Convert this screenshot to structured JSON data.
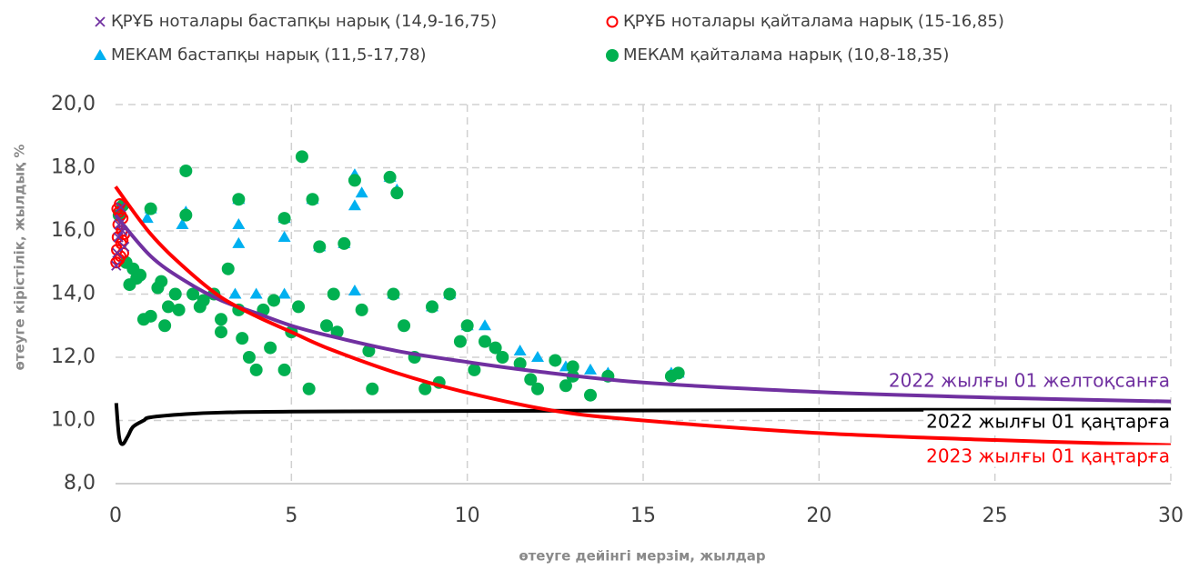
{
  "chart_data": {
    "type": "scatter",
    "xlabel": "өтеуге дейінгі мерзім, жылдар",
    "ylabel": "өтеуге кірістілік, жылдық %",
    "xlim": [
      0,
      30
    ],
    "xticks": [
      0,
      5,
      10,
      15,
      20,
      25,
      30
    ],
    "ylim": [
      8,
      20
    ],
    "yticks": [
      {
        "value": 8,
        "label": "8,0"
      },
      {
        "value": 10,
        "label": "10,0"
      },
      {
        "value": 12,
        "label": "12,0"
      },
      {
        "value": 14,
        "label": "14,0"
      },
      {
        "value": 16,
        "label": "16,0"
      },
      {
        "value": 18,
        "label": "18,0"
      },
      {
        "value": 20,
        "label": "20,0"
      }
    ],
    "grid": true,
    "series": [
      {
        "name": "ҚРҰБ ноталары бастапқы нарық (14,9-16,75)",
        "color": "#7030a0",
        "marker": "x",
        "x": [
          0.02,
          0.05,
          0.08,
          0.1,
          0.15,
          0.2,
          0.25
        ],
        "values": [
          14.9,
          15.3,
          15.8,
          16.2,
          16.75,
          16.0,
          15.5
        ]
      },
      {
        "name": "ҚРҰБ ноталары қайталама нарық (15-16,85)",
        "color": "#ff0000",
        "marker": "circle-open",
        "x": [
          0.02,
          0.04,
          0.06,
          0.08,
          0.1,
          0.12,
          0.14,
          0.16,
          0.18,
          0.2,
          0.22,
          0.25,
          0.05,
          0.1,
          0.15,
          0.2
        ],
        "values": [
          15.0,
          15.4,
          15.8,
          16.2,
          16.6,
          16.85,
          15.2,
          15.6,
          16.0,
          16.4,
          15.3,
          15.9,
          16.7,
          15.1,
          16.5,
          15.7
        ]
      },
      {
        "name": "МЕКАМ бастапқы нарық (11,5-17,78)",
        "color": "#00b0f0",
        "marker": "triangle",
        "x": [
          0.9,
          1.0,
          1.9,
          2.0,
          3.5,
          3.5,
          3.5,
          4.8,
          4.8,
          5.6,
          5.8,
          6.5,
          6.8,
          6.8,
          7.0,
          7.8,
          8.0,
          3.4,
          4.0,
          4.8,
          6.8,
          7.9,
          9.0,
          9.5,
          10.0,
          10.5,
          11.5,
          12.0,
          12.8,
          13.5,
          14.0,
          15.8,
          16.0
        ],
        "values": [
          16.4,
          16.7,
          16.2,
          16.6,
          17.0,
          16.2,
          15.6,
          16.4,
          15.8,
          17.0,
          15.5,
          15.6,
          17.78,
          16.8,
          17.2,
          17.7,
          17.3,
          14.0,
          14.0,
          14.0,
          14.1,
          14.0,
          13.6,
          14.0,
          13.0,
          13.0,
          12.2,
          12.0,
          11.7,
          11.6,
          11.5,
          11.5,
          11.5
        ]
      },
      {
        "name": "МЕКАМ қайталама нарық (10,8-18,35)",
        "color": "#00b050",
        "marker": "circle",
        "x": [
          0.1,
          0.2,
          0.3,
          0.4,
          0.5,
          0.6,
          0.8,
          1.0,
          1.0,
          1.2,
          1.4,
          1.5,
          1.7,
          1.8,
          2.0,
          2.0,
          2.2,
          2.5,
          2.8,
          3.0,
          3.2,
          3.5,
          3.5,
          3.6,
          3.8,
          4.0,
          4.2,
          4.5,
          4.8,
          4.8,
          5.0,
          5.3,
          5.5,
          5.6,
          5.8,
          6.0,
          6.2,
          6.5,
          6.8,
          7.0,
          7.3,
          7.8,
          7.9,
          8.0,
          8.5,
          8.8,
          9.0,
          9.5,
          9.8,
          10.0,
          10.2,
          10.5,
          11.0,
          11.5,
          12.0,
          12.5,
          13.0,
          13.0,
          13.5,
          14.0,
          15.8,
          16.0,
          0.7,
          1.3,
          2.4,
          3.0,
          4.4,
          5.2,
          6.3,
          7.2,
          8.2,
          9.2,
          10.8,
          11.8,
          12.8
        ],
        "values": [
          16.5,
          16.8,
          15.0,
          14.3,
          14.8,
          14.5,
          13.2,
          16.7,
          13.3,
          14.2,
          13.0,
          13.6,
          14.0,
          13.5,
          16.5,
          17.9,
          14.0,
          13.8,
          14.0,
          12.8,
          14.8,
          17.0,
          13.5,
          12.6,
          12.0,
          11.6,
          13.5,
          13.8,
          16.4,
          11.6,
          12.8,
          18.35,
          11.0,
          17.0,
          15.5,
          13.0,
          14.0,
          15.6,
          17.6,
          13.5,
          11.0,
          17.7,
          14.0,
          17.2,
          12.0,
          11.0,
          13.6,
          14.0,
          12.5,
          13.0,
          11.6,
          12.5,
          12.0,
          11.8,
          11.0,
          11.9,
          11.4,
          11.7,
          10.8,
          11.4,
          11.4,
          11.5,
          14.6,
          14.4,
          13.6,
          13.2,
          12.3,
          13.6,
          12.8,
          12.2,
          13.0,
          11.2,
          12.3,
          11.3,
          11.1
        ]
      },
      {
        "name": "2022 жылғы 01 желтоқсанға",
        "color": "#7030a0",
        "marker": "line",
        "x": [
          0,
          1,
          2,
          3,
          4,
          5,
          6,
          8,
          10,
          12,
          15,
          20,
          25,
          30
        ],
        "values": [
          16.5,
          15.2,
          14.4,
          13.8,
          13.4,
          13.0,
          12.7,
          12.2,
          11.85,
          11.55,
          11.2,
          10.9,
          10.72,
          10.6
        ]
      },
      {
        "name": "2022 жылғы 01 қаңтарға",
        "color": "#000000",
        "marker": "line",
        "x": [
          0.02,
          0.1,
          0.2,
          0.35,
          0.5,
          0.8,
          1,
          2,
          3,
          5,
          10,
          20,
          30
        ],
        "values": [
          10.55,
          9.5,
          9.25,
          9.5,
          9.8,
          10.0,
          10.1,
          10.2,
          10.25,
          10.28,
          10.3,
          10.33,
          10.35
        ]
      },
      {
        "name": "2023 жылғы 01 қаңтарға",
        "color": "#ff0000",
        "marker": "line",
        "x": [
          0,
          1,
          2,
          3,
          4,
          5,
          6,
          8,
          10,
          12.5,
          15,
          20,
          25,
          30
        ],
        "values": [
          17.4,
          15.9,
          14.8,
          13.9,
          13.3,
          12.8,
          12.3,
          11.5,
          10.88,
          10.3,
          10.0,
          9.6,
          9.38,
          9.22
        ]
      }
    ]
  }
}
